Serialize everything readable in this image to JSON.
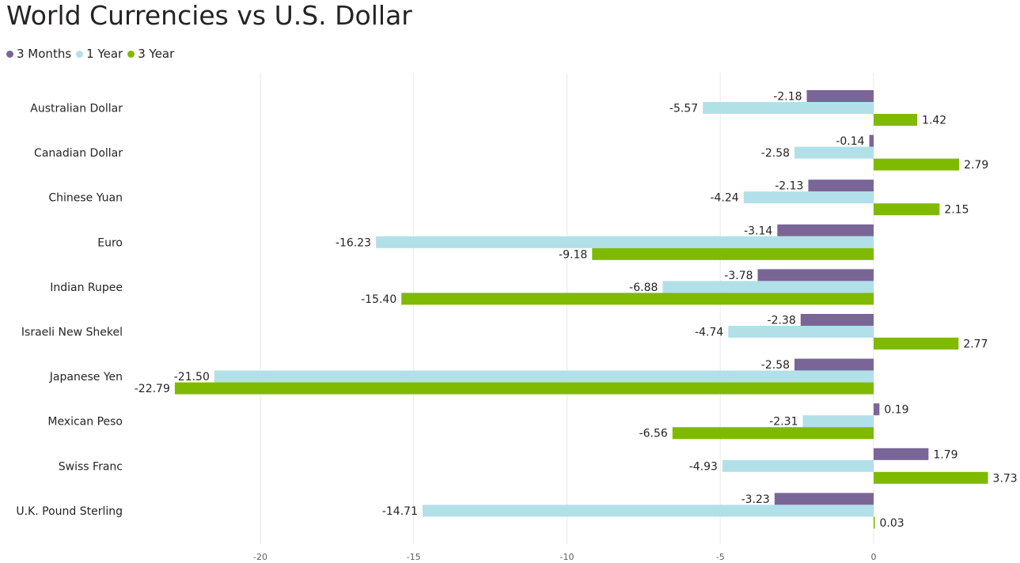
{
  "chart_data": {
    "type": "bar",
    "orientation": "horizontal",
    "title": "World Currencies vs U.S. Dollar",
    "categories": [
      "Australian Dollar",
      "Canadian Dollar",
      "Chinese Yuan",
      "Euro",
      "Indian Rupee",
      "Israeli New Shekel",
      "Japanese Yen",
      "Mexican Peso",
      "Swiss Franc",
      "U.K. Pound Sterling"
    ],
    "series": [
      {
        "name": "3 Months",
        "color": "#7a6597",
        "values": [
          -2.18,
          -0.14,
          -2.13,
          -3.14,
          -3.78,
          -2.38,
          -2.58,
          0.19,
          1.79,
          -3.23
        ],
        "labels": [
          "-2.18",
          "-0.14",
          "-2.13",
          "-3.14",
          "-3.78",
          "-2.38",
          "-2.58",
          "0.19",
          "1.79",
          "-3.23"
        ]
      },
      {
        "name": "1 Year",
        "color": "#b2e0e8",
        "values": [
          -5.57,
          -2.58,
          -4.24,
          -16.23,
          -6.88,
          -4.74,
          -21.5,
          -2.31,
          -4.93,
          -14.71
        ],
        "labels": [
          "-5.57",
          "-2.58",
          "-4.24",
          "-16.23",
          "-6.88",
          "-4.74",
          "-21.50",
          "-2.31",
          "-4.93",
          "-14.71"
        ]
      },
      {
        "name": "3 Year",
        "color": "#7fba00",
        "values": [
          1.42,
          2.79,
          2.15,
          -9.18,
          -15.4,
          2.77,
          -22.79,
          -6.56,
          3.73,
          0.03
        ],
        "labels": [
          "1.42",
          "2.79",
          "2.15",
          "-9.18",
          "-15.40",
          "2.77",
          "-22.79",
          "-6.56",
          "3.73",
          "0.03"
        ]
      }
    ],
    "x_ticks": [
      -20,
      -15,
      -10,
      -5,
      0
    ],
    "x_tick_labels": [
      "-20",
      "-15",
      "-10",
      "-5",
      "0"
    ],
    "xlim": [
      -23.8,
      3.9
    ],
    "grid": true,
    "legend_position": "top-left"
  }
}
